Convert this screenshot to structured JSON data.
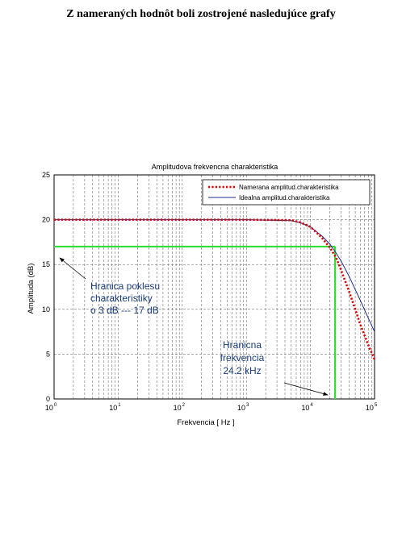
{
  "document": {
    "heading": "Z nameraných hodnôt boli zostrojené nasledujúce grafy"
  },
  "chart_data": {
    "type": "line",
    "title": "Amplitudova frekvencna charakteristika",
    "xlabel": "Frekvencia   [ Hz ]",
    "ylabel": "Amplituda (dB)",
    "xscale": "log",
    "xlim": [
      1,
      100000
    ],
    "ylim": [
      0,
      25
    ],
    "grid": true,
    "legend_position": "top-right",
    "x_tick_base": "10",
    "x_tick_exponents": [
      "0",
      "1",
      "2",
      "3",
      "4",
      "5"
    ],
    "y_ticks": [
      "0",
      "5",
      "10",
      "15",
      "20",
      "25"
    ],
    "series": [
      {
        "name": "Namerana amplitud.charakteristika",
        "color": "#dd0000",
        "style": "dotted",
        "x": [
          1,
          10,
          100,
          1000,
          5000,
          7000,
          10000,
          15000,
          20000,
          25000,
          30000,
          40000,
          50000,
          60000,
          80000,
          100000
        ],
        "y": [
          20,
          20,
          20,
          20,
          19.95,
          19.7,
          19.2,
          18.0,
          16.9,
          15.8,
          14.4,
          12.0,
          10.0,
          8.3,
          6.0,
          4.4
        ]
      },
      {
        "name": "Idealna amplitud.charakteristika",
        "color": "#1f2a8c",
        "style": "solid",
        "x": [
          1,
          10,
          100,
          1000,
          5000,
          7000,
          10000,
          15000,
          20000,
          25000,
          30000,
          40000,
          50000,
          60000,
          80000,
          100000
        ],
        "y": [
          20,
          20,
          20,
          20,
          19.9,
          19.65,
          19.2,
          18.2,
          17.3,
          16.3,
          15.4,
          13.7,
          12.2,
          11.0,
          9.0,
          7.5
        ]
      }
    ],
    "reference_lines": {
      "color": "#33dd33",
      "threshold_db": 17,
      "cutoff_hz": 24200
    },
    "annotations": {
      "threshold": [
        "Hranica poklesu",
        "charakteristiky",
        "o 3 dB ---  17 dB"
      ],
      "cutoff": [
        "Hranicna",
        "frekvencia",
        "24.2 kHz"
      ]
    }
  }
}
